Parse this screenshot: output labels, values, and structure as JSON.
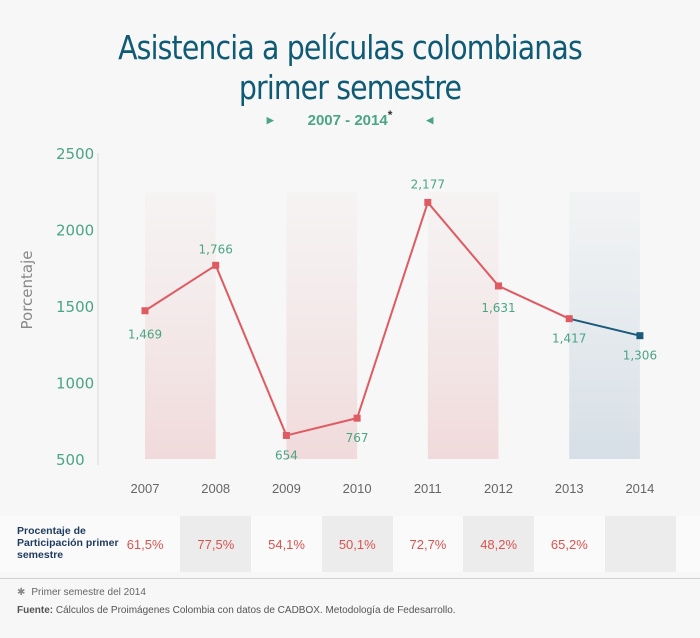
{
  "title_line1": "Asistencia a películas colombianas",
  "title_line2": "primer semestre",
  "subtitle": "2007 - 2014",
  "subtitle_mark": "*",
  "chart_data": {
    "type": "line",
    "title": "Asistencia a películas colombianas primer semestre",
    "ylabel": "Porcentaje",
    "xlabel": "",
    "ylim": [
      500,
      2500
    ],
    "yticks": [
      2500,
      2000,
      1500,
      1000,
      500
    ],
    "categories": [
      "2007",
      "2008",
      "2009",
      "2010",
      "2011",
      "2012",
      "2013",
      "2014"
    ],
    "values": [
      1469,
      1766,
      654,
      767,
      2177,
      1631,
      1417,
      1306
    ],
    "value_labels": [
      "1,469",
      "1,766",
      "654",
      "767",
      "2,177",
      "1,631",
      "1,417",
      "1,306"
    ],
    "series_color": "#e05a62",
    "highlight_color": "#1a5a7a",
    "highlight_category": "2014"
  },
  "table": {
    "row_label": "Procentaje de Participación primer semestre",
    "cells": [
      "61,5%",
      "77,5%",
      "54,1%",
      "50,1%",
      "72,7%",
      "48,2%",
      "65,2%",
      ""
    ]
  },
  "footnote": "Primer semestre del 2014",
  "footnote_mark": "✱",
  "source_label": "Fuente:",
  "source_text": "Cálculos de Proimágenes Colombia con datos de CADBOX. Metodología de Fedesarrollo."
}
